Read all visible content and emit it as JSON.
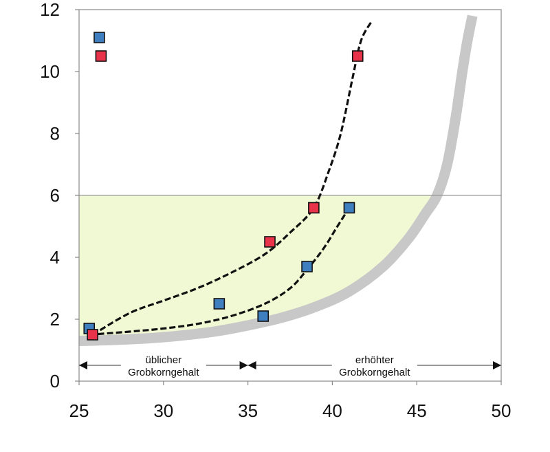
{
  "chart_data": {
    "type": "scatter",
    "title": "",
    "xlabel": "",
    "ylabel": "",
    "xlim": [
      25,
      50
    ],
    "ylim": [
      0,
      12
    ],
    "grid": false,
    "x_ticks": [
      25,
      30,
      35,
      40,
      45,
      50
    ],
    "y_ticks": [
      0,
      2,
      4,
      6,
      8,
      10,
      12
    ],
    "limit_line": {
      "y": 6
    },
    "series": [
      {
        "color": "#3f7fc0",
        "points": [
          {
            "x": 26.2,
            "y": 11.1
          },
          {
            "x": 25.6,
            "y": 1.7
          },
          {
            "x": 33.3,
            "y": 2.5
          },
          {
            "x": 35.9,
            "y": 2.1
          },
          {
            "x": 38.5,
            "y": 3.7
          },
          {
            "x": 41.0,
            "y": 5.6
          }
        ]
      },
      {
        "color": "#e8334a",
        "points": [
          {
            "x": 26.3,
            "y": 10.5
          },
          {
            "x": 25.8,
            "y": 1.5
          },
          {
            "x": 36.3,
            "y": 4.5
          },
          {
            "x": 38.9,
            "y": 5.6
          },
          {
            "x": 41.5,
            "y": 10.5
          }
        ]
      }
    ],
    "trend_curves": [
      {
        "style": "dashed",
        "color": "#111111",
        "points": [
          [
            25.8,
            1.5
          ],
          [
            28,
            2.2
          ],
          [
            30,
            2.6
          ],
          [
            32,
            3.0
          ],
          [
            34,
            3.5
          ],
          [
            36,
            4.1
          ],
          [
            37.5,
            4.8
          ],
          [
            38.9,
            5.6
          ],
          [
            39.8,
            6.8
          ],
          [
            40.5,
            8.0
          ],
          [
            41.2,
            9.8
          ],
          [
            41.7,
            11.0
          ],
          [
            42.3,
            11.6
          ]
        ]
      },
      {
        "style": "dashed",
        "color": "#111111",
        "points": [
          [
            25.6,
            1.5
          ],
          [
            28,
            1.6
          ],
          [
            30,
            1.7
          ],
          [
            32,
            1.85
          ],
          [
            34,
            2.1
          ],
          [
            36,
            2.5
          ],
          [
            37.5,
            3.0
          ],
          [
            38.5,
            3.6
          ],
          [
            39.5,
            4.3
          ],
          [
            40.3,
            5.0
          ],
          [
            41.0,
            5.6
          ]
        ]
      }
    ],
    "boundary_curve": {
      "color": "#c8c8c8",
      "points": [
        [
          25,
          1.3
        ],
        [
          27,
          1.33
        ],
        [
          29,
          1.38
        ],
        [
          31,
          1.47
        ],
        [
          33,
          1.6
        ],
        [
          35,
          1.8
        ],
        [
          37,
          2.05
        ],
        [
          39,
          2.4
        ],
        [
          41,
          2.9
        ],
        [
          43,
          3.7
        ],
        [
          44.5,
          4.6
        ],
        [
          45.5,
          5.4
        ],
        [
          46.2,
          6.0
        ],
        [
          46.8,
          7.0
        ],
        [
          47.3,
          8.5
        ],
        [
          47.7,
          10.0
        ],
        [
          48,
          11.0
        ],
        [
          48.3,
          11.8
        ]
      ]
    },
    "ranges": [
      {
        "from": 25,
        "to": 35,
        "label_line1": "üblicher",
        "label_line2": "Grobkorngehalt"
      },
      {
        "from": 35,
        "to": 50,
        "label_line1": "erhöhter",
        "label_line2": "Grobkorngehalt"
      }
    ],
    "colors": {
      "acceptable_zone_fill": "#f1f8d4",
      "axis": "#888888",
      "limit_line": "#999999"
    }
  }
}
